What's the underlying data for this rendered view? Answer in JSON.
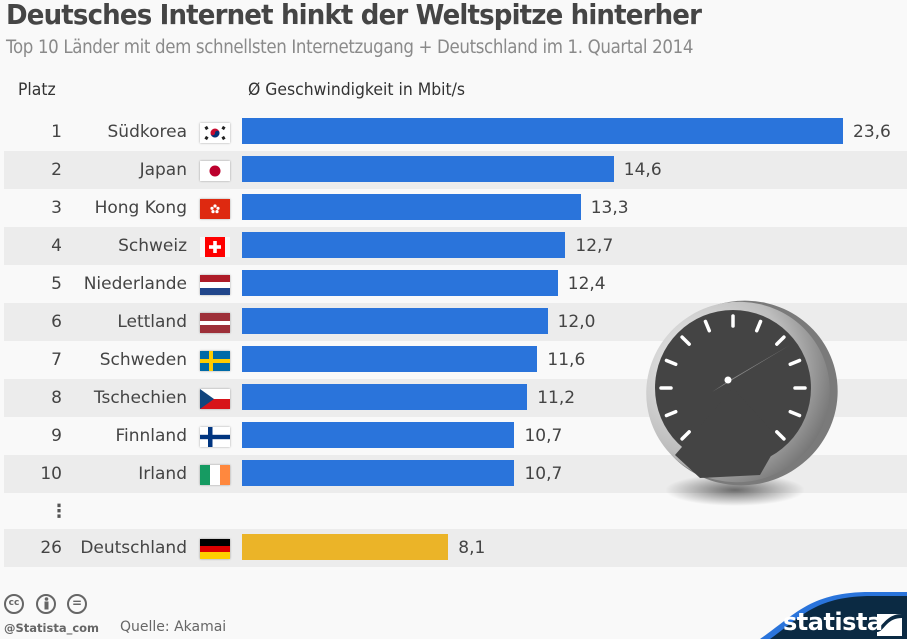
{
  "header": {
    "title": "Deutsches Internet hinkt der Weltspitze hinterher",
    "subtitle": "Top 10 Länder mit dem schnellsten Internetzugang + Deutschland im 1. Quartal 2014",
    "col_rank": "Platz",
    "col_speed": "Ø Geschwindigkeit in Mbit/s"
  },
  "colors": {
    "top10_bar": "#2a74db",
    "germany_bar": "#ebb428",
    "stripe": "#ececec",
    "logo_dark": "#0b2a43",
    "logo_accent": "#2a74db"
  },
  "chart_data": {
    "type": "bar",
    "orientation": "horizontal",
    "title": "Deutsches Internet hinkt der Weltspitze hinterher",
    "subtitle": "Top 10 Länder mit dem schnellsten Internetzugang + Deutschland im 1. Quartal 2014",
    "xlabel": "Ø Geschwindigkeit in Mbit/s",
    "ylabel": "Platz",
    "xlim": [
      0,
      23.6
    ],
    "grid": false,
    "categories": [
      "Südkorea",
      "Japan",
      "Hong Kong",
      "Schweiz",
      "Niederlande",
      "Lettland",
      "Schweden",
      "Tschechien",
      "Finnland",
      "Irland",
      "Deutschland"
    ],
    "ranks": [
      "1",
      "2",
      "3",
      "4",
      "5",
      "6",
      "7",
      "8",
      "9",
      "10",
      "26"
    ],
    "values": [
      23.6,
      14.6,
      13.3,
      12.7,
      12.4,
      12.0,
      11.6,
      11.2,
      10.7,
      10.7,
      8.1
    ],
    "value_labels": [
      "23,6",
      "14,6",
      "13,3",
      "12,7",
      "12,4",
      "12,0",
      "11,6",
      "11,2",
      "10,7",
      "10,7",
      "8,1"
    ],
    "flags": [
      "south-korea-flag",
      "japan-flag",
      "hong-kong-flag",
      "switzerland-flag",
      "netherlands-flag",
      "latvia-flag",
      "sweden-flag",
      "czech-flag",
      "finland-flag",
      "ireland-flag",
      "germany-flag"
    ],
    "highlight": "Deutschland",
    "gap_marker": "⋮"
  },
  "footer": {
    "source": "Quelle: Akamai",
    "handle": "@Statista_com",
    "license_icons": [
      "cc-icon",
      "by-icon",
      "nd-icon"
    ],
    "cc_labels": [
      "cc",
      "",
      "="
    ],
    "logo": "statista"
  }
}
